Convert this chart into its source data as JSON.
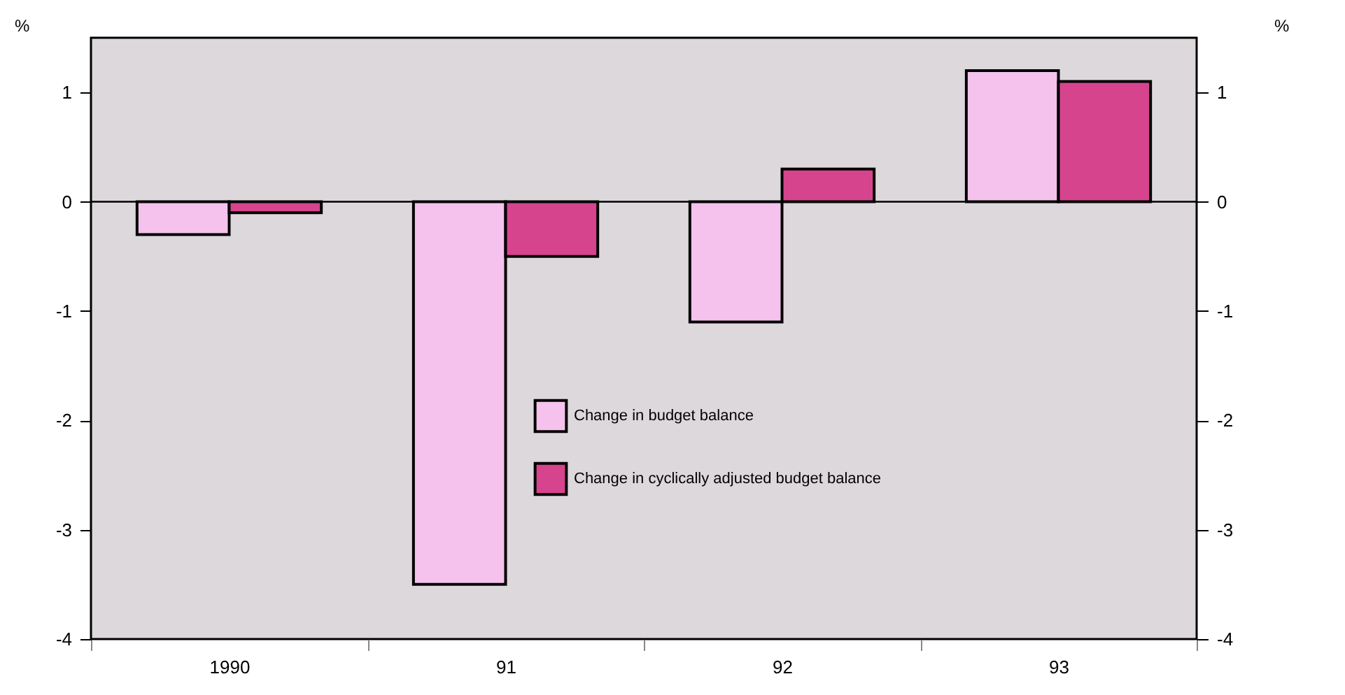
{
  "chart_data": {
    "type": "bar",
    "categories": [
      "1990",
      "91",
      "92",
      "93"
    ],
    "series": [
      {
        "name": "Change in budget balance",
        "color": "#f4c2ec",
        "values": [
          -0.3,
          -3.5,
          -1.1,
          1.2
        ]
      },
      {
        "name": "Change in cyclically adjusted budget balance",
        "color": "#d6448e",
        "values": [
          -0.1,
          -0.5,
          0.3,
          1.1
        ]
      }
    ],
    "ylabel": "%",
    "y2label": "%",
    "ylim": [
      -4,
      1.5
    ],
    "yticks": [
      -4,
      -3,
      -2,
      -1,
      0,
      1
    ],
    "y2lim": [
      -4,
      1.5
    ],
    "y2ticks": [
      -4,
      -3,
      -2,
      -1,
      0,
      1
    ],
    "ref_lines": [
      {
        "axis": "y",
        "value": 0
      }
    ],
    "grid": false,
    "legend": "bottom"
  }
}
